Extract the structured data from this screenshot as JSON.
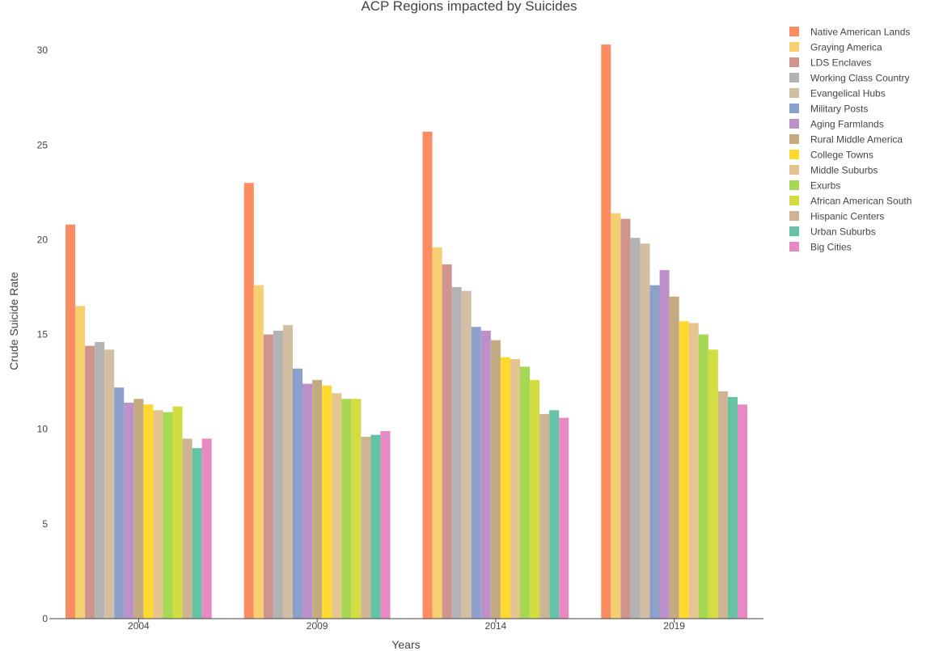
{
  "chart_data": {
    "type": "bar",
    "title": "ACP Regions impacted by Suicides",
    "xlabel": "Years",
    "ylabel": "Crude Suicide Rate",
    "categories": [
      "2004",
      "2009",
      "2014",
      "2019"
    ],
    "ylim": [
      0,
      31.5
    ],
    "yticks": [
      0,
      5,
      10,
      15,
      20,
      25,
      30
    ],
    "grid": false,
    "legend_position": "top-right",
    "series": [
      {
        "name": "Native American Lands",
        "color": "#fc8d62",
        "values": [
          20.8,
          23.0,
          25.7,
          30.3
        ]
      },
      {
        "name": "Graying America",
        "color": "#f6cf71",
        "values": [
          16.5,
          17.6,
          19.6,
          21.4
        ]
      },
      {
        "name": "LDS Enclaves",
        "color": "#d0948f",
        "values": [
          14.4,
          15.0,
          18.7,
          21.1
        ]
      },
      {
        "name": "Working Class Country",
        "color": "#b3b3b3",
        "values": [
          14.6,
          15.2,
          17.5,
          20.1
        ]
      },
      {
        "name": "Evangelical Hubs",
        "color": "#d2bfa3",
        "values": [
          14.2,
          15.5,
          17.3,
          19.8
        ]
      },
      {
        "name": "Military Posts",
        "color": "#8da0cb",
        "values": [
          12.2,
          13.2,
          15.4,
          17.6
        ]
      },
      {
        "name": "Aging Farmlands",
        "color": "#bc91c9",
        "values": [
          11.4,
          12.4,
          15.2,
          18.4
        ]
      },
      {
        "name": "Rural Middle America",
        "color": "#c4aa80",
        "values": [
          11.6,
          12.6,
          14.7,
          17.0
        ]
      },
      {
        "name": "College Towns",
        "color": "#ffd92f",
        "values": [
          11.3,
          12.3,
          13.8,
          15.7
        ]
      },
      {
        "name": "Middle Suburbs",
        "color": "#e4c590",
        "values": [
          11.0,
          11.9,
          13.7,
          15.6
        ]
      },
      {
        "name": "Exurbs",
        "color": "#a6d854",
        "values": [
          10.9,
          11.6,
          13.3,
          15.0
        ]
      },
      {
        "name": "African American South",
        "color": "#d3dc40",
        "values": [
          11.2,
          11.6,
          12.6,
          14.2
        ]
      },
      {
        "name": "Hispanic Centers",
        "color": "#cfb494",
        "values": [
          9.5,
          9.6,
          10.8,
          12.0
        ]
      },
      {
        "name": "Urban Suburbs",
        "color": "#66c2a5",
        "values": [
          9.0,
          9.7,
          11.0,
          11.7
        ]
      },
      {
        "name": "Big Cities",
        "color": "#e78ac3",
        "values": [
          9.5,
          9.9,
          10.6,
          11.3
        ]
      }
    ]
  }
}
